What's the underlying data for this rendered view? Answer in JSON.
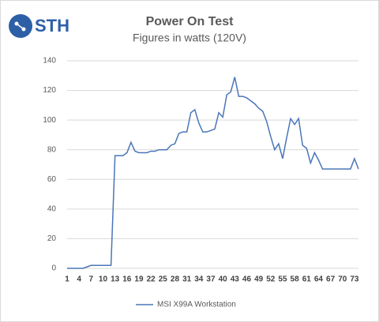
{
  "logo": "STH",
  "chart_data": {
    "type": "line",
    "title": "Power On Test",
    "subtitle": "Figures in watts (120V)",
    "x": [
      1,
      2,
      3,
      4,
      5,
      6,
      7,
      8,
      9,
      10,
      11,
      12,
      13,
      14,
      15,
      16,
      17,
      18,
      19,
      20,
      21,
      22,
      23,
      24,
      25,
      26,
      27,
      28,
      29,
      30,
      31,
      32,
      33,
      34,
      35,
      36,
      37,
      38,
      39,
      40,
      41,
      42,
      43,
      44,
      45,
      46,
      47,
      48,
      49,
      50,
      51,
      52,
      53,
      54,
      55,
      56,
      57,
      58,
      59,
      60,
      61,
      62,
      63,
      64,
      65,
      66,
      67,
      68,
      69,
      70,
      71,
      72,
      73,
      74
    ],
    "series": [
      {
        "name": "MSI X99A Workstation",
        "color": "#4a76b8",
        "values": [
          0,
          0,
          0,
          0,
          0,
          1,
          2,
          2,
          2,
          2,
          2,
          2,
          76,
          76,
          76,
          78,
          85,
          79,
          78,
          78,
          78,
          79,
          79,
          80,
          80,
          80,
          83,
          84,
          91,
          92,
          92,
          105,
          107,
          98,
          92,
          92,
          93,
          94,
          105,
          102,
          117,
          119,
          129,
          116,
          116,
          115,
          113,
          111,
          108,
          106,
          99,
          89,
          80,
          84,
          74,
          88,
          101,
          97,
          101,
          83,
          81,
          71,
          78,
          73,
          67,
          67,
          67,
          67,
          67,
          67,
          67,
          67,
          74,
          67
        ]
      }
    ],
    "xlim": [
      1,
      74
    ],
    "xticks": [
      1,
      4,
      7,
      10,
      13,
      16,
      19,
      22,
      25,
      28,
      31,
      34,
      37,
      40,
      43,
      46,
      49,
      52,
      55,
      58,
      61,
      64,
      67,
      70,
      73
    ],
    "ylim": [
      0,
      140
    ],
    "yticks": [
      0,
      20,
      40,
      60,
      80,
      100,
      120,
      140
    ],
    "grid": true,
    "legend": "bottom"
  }
}
